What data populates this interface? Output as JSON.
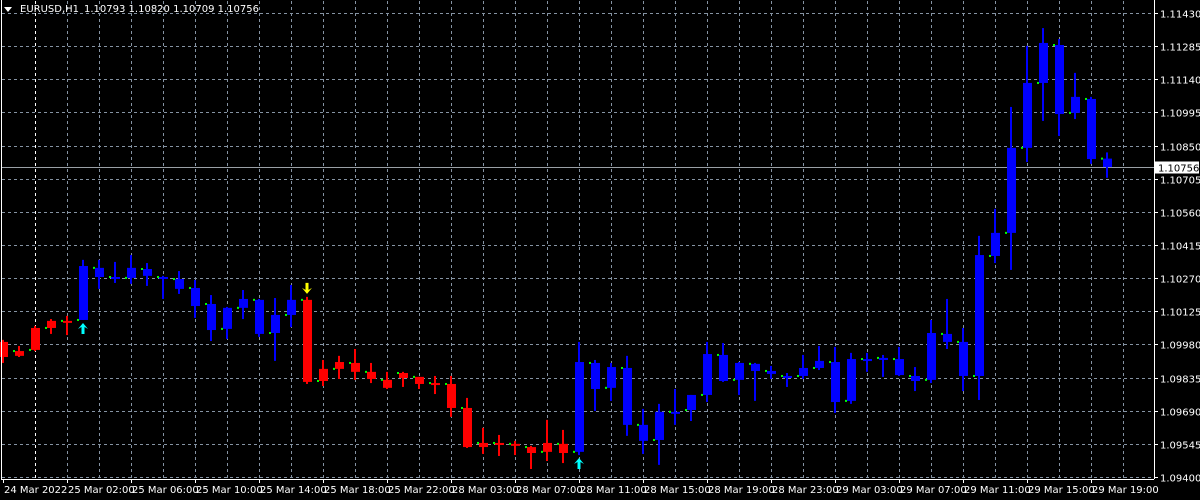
{
  "header": {
    "symbol": "EURUSD,H1",
    "ohlc_text": "1.10793 1.10820 1.10709 1.10756",
    "menu_icon": "triangle-down-icon"
  },
  "colors": {
    "background": "#000000",
    "grid": "#8593a3",
    "day_separator": "#ffffff",
    "bear_trend": "#ff0000",
    "bull_trend": "#0000ff",
    "open_marker": "#00ff00",
    "buy_arrow": "#00ffff",
    "sell_arrow": "#ffff00",
    "current_price_line": "#9aa0a6"
  },
  "chart_data": {
    "type": "candlestick",
    "symbol": "EURUSD",
    "timeframe": "H1",
    "ylim": [
      1.094,
      1.1143
    ],
    "grid": true,
    "current_price": "1.10756",
    "price_labels": [
      "1.11430",
      "1.11285",
      "1.11140",
      "1.10995",
      "1.10850",
      "1.10705",
      "1.10560",
      "1.10415",
      "1.10270",
      "1.10125",
      "1.09980",
      "1.09835",
      "1.09690",
      "1.09545",
      "1.09400"
    ],
    "time_labels": [
      "24 Mar 2022",
      "25 Mar 02:00",
      "25 Mar 06:00",
      "25 Mar 10:00",
      "25 Mar 14:00",
      "25 Mar 18:00",
      "25 Mar 22:00",
      "28 Mar 03:00",
      "28 Mar 07:00",
      "28 Mar 11:00",
      "28 Mar 15:00",
      "28 Mar 19:00",
      "28 Mar 23:00",
      "29 Mar 03:00",
      "29 Mar 07:00",
      "29 Mar 11:00",
      "29 Mar 15:00",
      "29 Mar 19:00"
    ],
    "candle_fields": [
      "open",
      "high",
      "low",
      "close",
      "trend"
    ],
    "candles": [
      [
        1.09991,
        1.1,
        1.09899,
        1.09925,
        "bear"
      ],
      [
        1.09951,
        1.09973,
        1.09925,
        1.0993,
        "bear"
      ],
      [
        1.09956,
        1.10061,
        1.09951,
        1.10052,
        "bear"
      ],
      [
        1.10052,
        1.10091,
        1.10026,
        1.10083,
        "bear"
      ],
      [
        1.10083,
        1.10105,
        1.10021,
        1.10083,
        "bear"
      ],
      [
        1.10087,
        1.1035,
        1.10087,
        1.10323,
        "bull"
      ],
      [
        1.10315,
        1.1035,
        1.10223,
        1.10275,
        "bull"
      ],
      [
        1.10275,
        1.10341,
        1.10249,
        1.10271,
        "bull"
      ],
      [
        1.10271,
        1.10371,
        1.10245,
        1.10315,
        "bull"
      ],
      [
        1.1031,
        1.10336,
        1.10236,
        1.1028,
        "bull"
      ],
      [
        1.10275,
        1.1028,
        1.10179,
        1.10271,
        "bull"
      ],
      [
        1.10266,
        1.10301,
        1.10201,
        1.10223,
        "bull"
      ],
      [
        1.10227,
        1.10262,
        1.10096,
        1.10148,
        "bull"
      ],
      [
        1.10157,
        1.10196,
        1.09995,
        1.10043,
        "bull"
      ],
      [
        1.10048,
        1.10144,
        1.10004,
        1.1014,
        "bull"
      ],
      [
        1.1014,
        1.10218,
        1.10091,
        1.10179,
        "bull"
      ],
      [
        1.10175,
        1.10179,
        1.10013,
        1.10026,
        "bull"
      ],
      [
        1.1003,
        1.10183,
        1.09908,
        1.10109,
        "bull"
      ],
      [
        1.10109,
        1.1024,
        1.10056,
        1.10175,
        "bull"
      ],
      [
        1.10175,
        1.10188,
        1.09807,
        1.09816,
        "bear"
      ],
      [
        1.0982,
        1.09912,
        1.09798,
        1.09873,
        "bear"
      ],
      [
        1.09873,
        1.0993,
        1.09829,
        1.09903,
        "bear"
      ],
      [
        1.09899,
        1.0996,
        1.09825,
        1.0986,
        "bear"
      ],
      [
        1.0986,
        1.09899,
        1.09811,
        1.09829,
        "bear"
      ],
      [
        1.09825,
        1.0986,
        1.09785,
        1.0979,
        "bear"
      ],
      [
        1.09855,
        1.0986,
        1.09794,
        1.09833,
        "bear"
      ],
      [
        1.09838,
        1.09838,
        1.09785,
        1.09807,
        "bear"
      ],
      [
        1.09811,
        1.09842,
        1.09763,
        1.09811,
        "bear"
      ],
      [
        1.09807,
        1.09842,
        1.09663,
        1.09702,
        "bear"
      ],
      [
        1.09702,
        1.09746,
        1.09527,
        1.09531,
        "bear"
      ],
      [
        1.09549,
        1.09615,
        1.09501,
        1.09531,
        "bear"
      ],
      [
        1.09549,
        1.09584,
        1.09492,
        1.09549,
        "bear"
      ],
      [
        1.09545,
        1.09558,
        1.09496,
        1.09545,
        "bear"
      ],
      [
        1.09531,
        1.09536,
        1.09435,
        1.09505,
        "bear"
      ],
      [
        1.0951,
        1.0965,
        1.0947,
        1.09549,
        "bear"
      ],
      [
        1.09545,
        1.09606,
        1.09461,
        1.09505,
        "bear"
      ],
      [
        1.0951,
        1.09991,
        1.09496,
        1.09903,
        "bull"
      ],
      [
        1.09899,
        1.09912,
        1.09689,
        1.09785,
        "bull"
      ],
      [
        1.0979,
        1.09899,
        1.09733,
        1.09881,
        "bull"
      ],
      [
        1.09877,
        1.0993,
        1.0958,
        1.09628,
        "bull"
      ],
      [
        1.09628,
        1.09698,
        1.09501,
        1.09558,
        "bull"
      ],
      [
        1.09562,
        1.0972,
        1.09453,
        1.09685,
        "bull"
      ],
      [
        1.09685,
        1.09785,
        1.09628,
        1.09685,
        "bull"
      ],
      [
        1.09693,
        1.09759,
        1.09645,
        1.09759,
        "bull"
      ],
      [
        1.09759,
        1.09991,
        1.09728,
        1.09938,
        "bull"
      ],
      [
        1.09934,
        1.09986,
        1.09816,
        1.0982,
        "bull"
      ],
      [
        1.09825,
        1.09903,
        1.09759,
        1.09899,
        "bull"
      ],
      [
        1.09895,
        1.09899,
        1.09733,
        1.09864,
        "bull"
      ],
      [
        1.09864,
        1.09886,
        1.09829,
        1.09851,
        "bull"
      ],
      [
        1.09842,
        1.09855,
        1.09794,
        1.09842,
        "bull"
      ],
      [
        1.09842,
        1.09934,
        1.09829,
        1.09877,
        "bull"
      ],
      [
        1.09877,
        1.09973,
        1.09868,
        1.09908,
        "bull"
      ],
      [
        1.09903,
        1.09969,
        1.0968,
        1.09728,
        "bull"
      ],
      [
        1.09733,
        1.09943,
        1.0972,
        1.09916,
        "bull"
      ],
      [
        1.09916,
        1.09943,
        1.0986,
        1.09916,
        "bull"
      ],
      [
        1.09921,
        1.09934,
        1.09838,
        1.09912,
        "bull"
      ],
      [
        1.09916,
        1.09969,
        1.09842,
        1.09846,
        "bull"
      ],
      [
        1.09842,
        1.09881,
        1.09776,
        1.0982,
        "bull"
      ],
      [
        1.09825,
        1.10087,
        1.09811,
        1.1003,
        "bull"
      ],
      [
        1.10026,
        1.10179,
        1.0996,
        1.09991,
        "bull"
      ],
      [
        1.09991,
        1.10052,
        1.09776,
        1.09842,
        "bull"
      ],
      [
        1.09842,
        1.10455,
        1.09737,
        1.10371,
        "bull"
      ],
      [
        1.10367,
        1.10573,
        1.10336,
        1.10468,
        "bull"
      ],
      [
        1.10468,
        1.11019,
        1.10306,
        1.1084,
        "bull"
      ],
      [
        1.1084,
        1.11286,
        1.10778,
        1.11124,
        "bull"
      ],
      [
        1.11124,
        1.11364,
        1.10958,
        1.11299,
        "bull"
      ],
      [
        1.1129,
        1.11316,
        1.10892,
        1.10988,
        "bull"
      ],
      [
        1.10993,
        1.11168,
        1.10966,
        1.11063,
        "bull"
      ],
      [
        1.11054,
        1.11063,
        1.1077,
        1.10791,
        "bull"
      ],
      [
        1.10793,
        1.1082,
        1.10709,
        1.10756,
        "bull"
      ]
    ],
    "signals": [
      {
        "candle": 5,
        "type": "buy",
        "icon": "arrow-up-icon"
      },
      {
        "candle": 19,
        "type": "sell",
        "icon": "arrow-down-icon"
      },
      {
        "candle": 36,
        "type": "buy",
        "icon": "arrow-up-icon"
      }
    ],
    "day_separator_candles": [
      2,
      25,
      49
    ]
  }
}
